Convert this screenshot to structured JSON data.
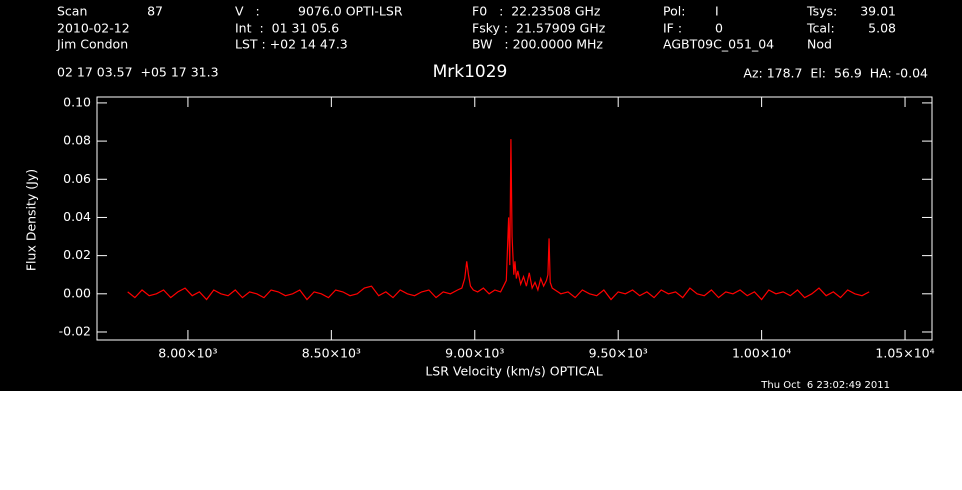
{
  "header": {
    "scan_label": "Scan",
    "scan": "87",
    "date": "2010-02-12",
    "observer": "Jim Condon",
    "position": "02 17 03.57  +05 17 31.3",
    "v_label": "V   :",
    "v": "9076.0 OPTI-LSR",
    "int": "Int  :  01 31 05.6",
    "lst": "LST : +02 14 47.3",
    "f0": "F0   :  22.23508 GHz",
    "fsky": "Fsky :  21.57909 GHz",
    "bw": "BW   : 200.0000 MHz",
    "pol_label": "Pol:",
    "pol": "I",
    "if_label": "IF :",
    "if": "0",
    "project": "AGBT09C_051_04",
    "tsys_label": "Tsys:",
    "tsys": "39.01",
    "tcal_label": "Tcal:",
    "tcal": "5.08",
    "proc": "Nod",
    "pointing": "Az: 178.7  El:  56.9  HA: -0.04",
    "timestamp": "Thu Oct  6 23:02:49 2011"
  },
  "chart_data": {
    "type": "line",
    "title": "Mrk1029",
    "x_label": "LSR Velocity (km/s) OPTICAL",
    "y_label": "Flux Density (Jy)",
    "color": "#ff0000",
    "xlim": [
      7683,
      10594
    ],
    "ylim": [
      -0.0242,
      0.1031
    ],
    "xticks": [
      {
        "value": 8000,
        "label": "8.00×10³"
      },
      {
        "value": 8500,
        "label": "8.50×10³"
      },
      {
        "value": 9000,
        "label": "9.00×10³"
      },
      {
        "value": 9500,
        "label": "9.50×10³"
      },
      {
        "value": 10000,
        "label": "1.00×10⁴"
      },
      {
        "value": 10500,
        "label": "1.05×10⁴"
      }
    ],
    "yticks": [
      -0.02,
      {
        "value": 0,
        "label": "0.00"
      },
      0.02,
      0.04,
      0.06,
      0.08,
      {
        "value": 0.1,
        "label": "0.10"
      }
    ],
    "x": [
      7790,
      7815,
      7840,
      7865,
      7890,
      7915,
      7940,
      7965,
      7990,
      8015,
      8040,
      8065,
      8090,
      8115,
      8140,
      8165,
      8190,
      8215,
      8240,
      8265,
      8290,
      8315,
      8340,
      8365,
      8390,
      8415,
      8440,
      8465,
      8490,
      8515,
      8540,
      8565,
      8590,
      8615,
      8640,
      8665,
      8690,
      8715,
      8740,
      8765,
      8790,
      8815,
      8840,
      8865,
      8890,
      8915,
      8940,
      8955,
      8965,
      8972,
      8978,
      8985,
      8995,
      9010,
      9030,
      9050,
      9070,
      9090,
      9100,
      9110,
      9118,
      9122,
      9126,
      9130,
      9133,
      9136,
      9140,
      9145,
      9150,
      9160,
      9170,
      9180,
      9190,
      9200,
      9210,
      9220,
      9230,
      9240,
      9250,
      9255,
      9259,
      9263,
      9270,
      9280,
      9290,
      9300,
      9325,
      9350,
      9375,
      9400,
      9425,
      9450,
      9475,
      9500,
      9525,
      9550,
      9575,
      9600,
      9625,
      9650,
      9675,
      9700,
      9725,
      9750,
      9775,
      9800,
      9825,
      9850,
      9875,
      9900,
      9925,
      9950,
      9975,
      10000,
      10025,
      10050,
      10075,
      10100,
      10125,
      10150,
      10175,
      10200,
      10225,
      10250,
      10275,
      10300,
      10325,
      10350,
      10375
    ],
    "values": [
      0.001,
      -0.002,
      0.002,
      -0.001,
      0.0,
      0.002,
      -0.002,
      0.001,
      0.003,
      -0.001,
      0.001,
      -0.003,
      0.002,
      0.0,
      -0.001,
      0.002,
      -0.002,
      0.001,
      0.0,
      -0.002,
      0.002,
      0.001,
      -0.001,
      0.0,
      0.002,
      -0.003,
      0.001,
      0.0,
      -0.002,
      0.002,
      0.001,
      -0.001,
      0.0,
      0.003,
      0.004,
      -0.001,
      0.001,
      -0.002,
      0.002,
      0.0,
      -0.001,
      0.001,
      0.002,
      -0.002,
      0.001,
      0.0,
      0.002,
      0.003,
      0.008,
      0.017,
      0.01,
      0.004,
      0.002,
      0.001,
      0.003,
      0.0,
      0.002,
      0.001,
      0.004,
      0.007,
      0.04,
      0.015,
      0.081,
      0.03,
      0.02,
      0.01,
      0.017,
      0.008,
      0.012,
      0.005,
      0.009,
      0.004,
      0.011,
      0.003,
      0.006,
      0.002,
      0.008,
      0.004,
      0.007,
      0.01,
      0.029,
      0.006,
      0.003,
      0.002,
      0.001,
      0.0,
      0.001,
      -0.002,
      0.002,
      0.0,
      -0.001,
      0.002,
      -0.003,
      0.001,
      0.0,
      0.002,
      -0.001,
      0.001,
      -0.002,
      0.002,
      0.0,
      0.001,
      -0.002,
      0.003,
      0.0,
      -0.001,
      0.002,
      -0.002,
      0.001,
      0.0,
      0.002,
      -0.001,
      0.001,
      -0.003,
      0.002,
      0.0,
      0.001,
      -0.001,
      0.002,
      -0.002,
      0.0,
      0.003,
      -0.001,
      0.001,
      -0.002,
      0.002,
      0.0,
      -0.001,
      0.001
    ]
  }
}
